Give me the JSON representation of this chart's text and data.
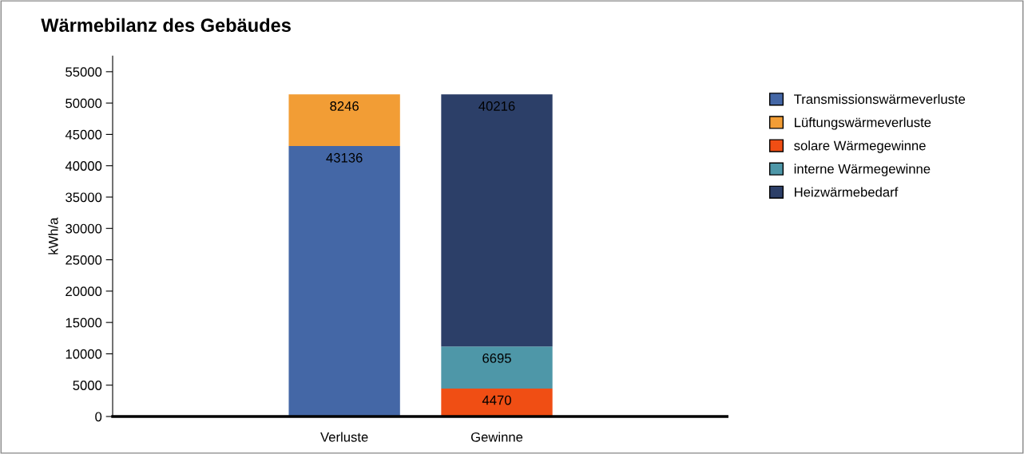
{
  "chart_data": {
    "type": "bar",
    "title": "Wärmebilanz des Gebäudes",
    "ylabel": "kWh/a",
    "categories": [
      "Verluste",
      "Gewinne"
    ],
    "stacked": true,
    "data_labels": true,
    "legend": "right",
    "grid": false,
    "ylim": [
      0,
      57500
    ],
    "yticks": [
      0,
      5000,
      10000,
      15000,
      20000,
      25000,
      30000,
      35000,
      40000,
      45000,
      50000,
      55000
    ],
    "series": [
      {
        "name": "Transmissionswärmeverluste",
        "color": "#4467a6",
        "values": [
          43136,
          null
        ]
      },
      {
        "name": "Lüftungswärmeverluste",
        "color": "#f29d35",
        "values": [
          8246,
          null
        ]
      },
      {
        "name": "solare Wärmegewinne",
        "color": "#f04e14",
        "values": [
          null,
          4470
        ]
      },
      {
        "name": "interne Wärmegewinne",
        "color": "#4e97a8",
        "values": [
          null,
          6695
        ]
      },
      {
        "name": "Heizwärmebedarf",
        "color": "#2c3f68",
        "values": [
          null,
          40216
        ]
      }
    ]
  }
}
